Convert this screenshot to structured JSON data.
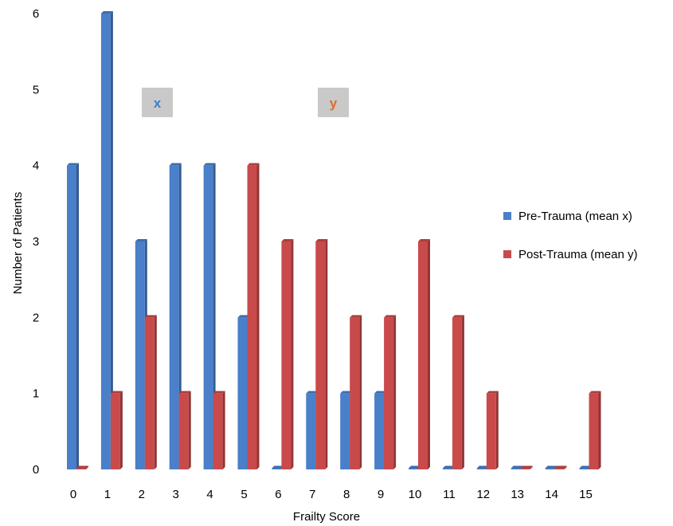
{
  "chart_data": {
    "type": "bar",
    "xlabel": "Frailty Score",
    "ylabel": "Number of Patients",
    "ylim": [
      0,
      6
    ],
    "yticks": [
      "0",
      "1",
      "2",
      "3",
      "4",
      "5",
      "6"
    ],
    "categories": [
      "0",
      "1",
      "2",
      "3",
      "4",
      "5",
      "6",
      "7",
      "8",
      "9",
      "10",
      "11",
      "12",
      "13",
      "14",
      "15"
    ],
    "series": [
      {
        "name": "Pre-Trauma (mean x)",
        "color": "#4a7fc9",
        "values": [
          4,
          6,
          3,
          4,
          4,
          2,
          0,
          1,
          1,
          1,
          0,
          0,
          0,
          0,
          0,
          0
        ]
      },
      {
        "name": "Post-Trauma (mean y)",
        "color": "#c94a4a",
        "values": [
          0,
          1,
          2,
          1,
          1,
          4,
          3,
          3,
          2,
          2,
          3,
          2,
          1,
          0,
          0,
          1
        ]
      }
    ],
    "annotations": [
      {
        "text": "x",
        "color": "#3b7fd0"
      },
      {
        "text": "y",
        "color": "#e06a2a"
      }
    ],
    "legend_position": "right",
    "grid": false
  }
}
